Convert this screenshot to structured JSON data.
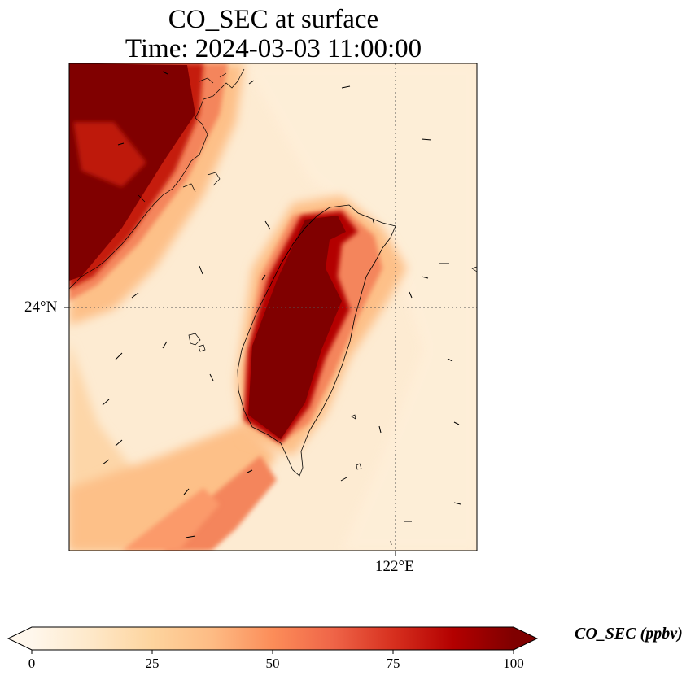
{
  "title": {
    "line1": "CO_SEC at surface",
    "line2": "Time: 2024-03-03 11:00:00"
  },
  "map": {
    "lat_label": "24°N",
    "lon_label": "122°E",
    "gridlines": "dotted"
  },
  "colorbar": {
    "label": "CO_SEC (ppbv)",
    "ticks": [
      "0",
      "25",
      "50",
      "75",
      "100"
    ],
    "vmin": 0,
    "vmax": 100,
    "colormap": "OrRd",
    "extend": "both",
    "colors": [
      "#fff7ec",
      "#fee8c8",
      "#fdd49e",
      "#fdbb84",
      "#fc8d59",
      "#ef6548",
      "#d7301f",
      "#b30000",
      "#7f0000"
    ]
  },
  "colors": {
    "background": "#fdebd2",
    "max": "#7f0000"
  }
}
